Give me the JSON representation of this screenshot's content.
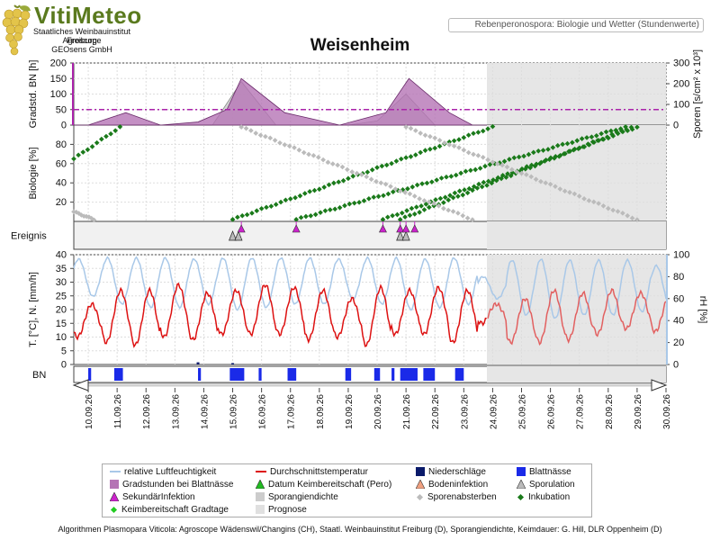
{
  "header": {
    "logo_title": "VitiMeteo",
    "logo_lines": [
      "Staatliches Weinbauinstitut Freiburg",
      "Agroscope",
      "GEOsens GmbH"
    ],
    "subtitle": "Rebenperonospora: Biologie und Wetter (Stundenwerte)",
    "station": "Weisenheim"
  },
  "chart_data": [
    {
      "type": "area",
      "panel": "gradstunden-sporen",
      "ylabel": "Gradstd. BN [h]",
      "ylabel_right": "Sporen [s/cm² x 10³]",
      "ylim": [
        0,
        200
      ],
      "yticks": [
        "0",
        "50",
        "100",
        "150",
        "200"
      ],
      "ylim_right": [
        0,
        300
      ],
      "yticks_right": [
        "0",
        "100",
        "200",
        "300"
      ],
      "threshold_line": 50,
      "x_days": [
        9.5,
        10.0,
        11.3,
        12.5,
        13.8,
        14.8,
        15.3,
        16.8,
        18.7,
        20.3,
        21.1,
        22.5,
        23.3,
        23.8
      ],
      "gradstunden": [
        0,
        0,
        40,
        0,
        10,
        50,
        150,
        40,
        0,
        40,
        150,
        40,
        0,
        0
      ],
      "sporangiendichte_x": [
        14.3,
        15.3,
        16.5,
        19.0,
        20.0,
        21.0,
        22.0,
        23.0
      ],
      "sporangiendichte": [
        0,
        210,
        0,
        0,
        20,
        150,
        0,
        0
      ]
    },
    {
      "type": "scatter",
      "panel": "biologie",
      "ylabel": "Biologie [%]",
      "ylim": [
        0,
        100
      ],
      "yticks": [
        "20",
        "40",
        "60",
        "80"
      ],
      "series": [
        {
          "name": "Inkubation",
          "color": "#1a7a1a",
          "x": [
            9.5,
            11.1
          ],
          "y": [
            65,
            98
          ]
        },
        {
          "name": "Inkubation",
          "color": "#1a7a1a",
          "x": [
            15.0,
            24.0
          ],
          "y": [
            2,
            98
          ]
        },
        {
          "name": "Inkubation",
          "color": "#1a7a1a",
          "x": [
            17.2,
            28.6
          ],
          "y": [
            2,
            98
          ]
        },
        {
          "name": "Inkubation",
          "color": "#1a7a1a",
          "x": [
            20.2,
            29.0
          ],
          "y": [
            2,
            98
          ]
        },
        {
          "name": "Inkubation",
          "color": "#1a7a1a",
          "x": [
            20.8,
            28.8
          ],
          "y": [
            2,
            98
          ]
        },
        {
          "name": "Sporenabsterben",
          "color": "#bbbbbb",
          "x": [
            9.5,
            10.2
          ],
          "y": [
            10,
            2
          ]
        },
        {
          "name": "Sporenabsterben",
          "color": "#bbbbbb",
          "x": [
            15.3,
            23.3
          ],
          "y": [
            98,
            2
          ]
        },
        {
          "name": "Sporenabsterben",
          "color": "#bbbbbb",
          "x": [
            21.0,
            29.0
          ],
          "y": [
            98,
            2
          ]
        }
      ]
    },
    {
      "type": "scatter",
      "panel": "ereignis",
      "ylabel": "Ereignis",
      "sekundaerinfektion": [
        15.3,
        17.2,
        20.2,
        20.8,
        21.0,
        21.3
      ],
      "sporulation": [
        15.0,
        15.2,
        20.8,
        21.0
      ]
    },
    {
      "type": "line",
      "panel": "wetter",
      "ylabel": "T. [°C], N. [mm/h]",
      "ylabel_right": "rH [%]",
      "ylim": [
        0,
        40
      ],
      "yticks": [
        "0",
        "5",
        "10",
        "15",
        "20",
        "25",
        "30",
        "35",
        "40"
      ],
      "ylim_right": [
        0,
        100
      ],
      "yticks_right": [
        "0",
        "20",
        "40",
        "60",
        "80",
        "100"
      ],
      "days": [
        "10.09.26",
        "11.09.26",
        "12.09.26",
        "13.09.26",
        "14.09.26",
        "15.09.26",
        "16.09.26",
        "17.09.26",
        "18.09.26",
        "19.09.26",
        "20.09.26",
        "21.09.26",
        "22.09.26",
        "23.09.26",
        "24.09.26",
        "25.09.26",
        "26.09.26",
        "27.09.26",
        "28.09.26",
        "29.09.26",
        "30.09.26"
      ],
      "temp_daily_max": [
        22,
        27,
        27,
        29,
        26,
        27,
        29,
        28,
        27,
        24,
        28,
        27,
        28,
        27,
        22,
        24,
        27,
        26,
        27,
        26,
        25
      ],
      "temp_daily_min": [
        10,
        8,
        7,
        10,
        9,
        11,
        11,
        11,
        9,
        10,
        7,
        11,
        11,
        8,
        15,
        8,
        8,
        9,
        11,
        13,
        12
      ],
      "rh_daily_max": [
        96,
        97,
        97,
        97,
        96,
        97,
        97,
        97,
        97,
        96,
        97,
        97,
        96,
        97,
        80,
        95,
        96,
        95,
        95,
        95,
        90
      ],
      "rh_daily_min": [
        62,
        55,
        52,
        52,
        55,
        50,
        52,
        55,
        55,
        60,
        55,
        50,
        52,
        55,
        60,
        45,
        42,
        45,
        45,
        48,
        50
      ],
      "niederschlag": {
        "x": [
          13.8,
          15.0
        ],
        "y": [
          0.8,
          0.5
        ]
      }
    },
    {
      "type": "bar",
      "panel": "blattnaesse",
      "ylabel": "BN",
      "intervals": [
        [
          10.0,
          10.1
        ],
        [
          10.9,
          11.2
        ],
        [
          13.8,
          13.9
        ],
        [
          14.9,
          15.4
        ],
        [
          15.9,
          16.0
        ],
        [
          16.9,
          17.2
        ],
        [
          18.9,
          19.1
        ],
        [
          19.9,
          20.1
        ],
        [
          20.5,
          20.6
        ],
        [
          20.8,
          21.4
        ],
        [
          21.6,
          22.0
        ],
        [
          22.7,
          23.0
        ]
      ]
    }
  ],
  "prognose_start_day": 23.8,
  "legend": {
    "items": [
      {
        "label": "relative Luftfeuchtigkeit",
        "icon": "line-light-blue",
        "color": "#a9c8e8"
      },
      {
        "label": "Durchschnittstemperatur",
        "icon": "line-red",
        "color": "#dd1111"
      },
      {
        "label": "Niederschläge",
        "icon": "square-dark-navy",
        "color": "#0a1a6a"
      },
      {
        "label": "Blattnässe",
        "icon": "square-blue",
        "color": "#1a2ae8"
      },
      {
        "label": "Gradstunden bei Blattnässe",
        "icon": "square-purple",
        "color": "#b574b5"
      },
      {
        "label": "Datum Keimbereitschaft (Pero)",
        "icon": "triangle-green",
        "color": "#22bb22"
      },
      {
        "label": "Bodeninfektion",
        "icon": "triangle-salmon",
        "color": "#f0a080"
      },
      {
        "label": "Sporulation",
        "icon": "triangle-grey",
        "color": "#bbbbbb"
      },
      {
        "label": "SekundärInfektion",
        "icon": "triangle-magenta",
        "color": "#cc22cc"
      },
      {
        "label": "Sporangiendichte",
        "icon": "square-light-grey",
        "color": "#cccccc"
      },
      {
        "label": "Sporenabsterben",
        "icon": "diamond-grey",
        "color": "#bbbbbb"
      },
      {
        "label": "Inkubation",
        "icon": "diamond-green",
        "color": "#1a7a1a"
      },
      {
        "label": "Keimbereitschaft Gradtage",
        "icon": "diamond-bright-green",
        "color": "#22cc22"
      },
      {
        "label": "Prognose",
        "icon": "square-pale-grey",
        "color": "#e0e0e0"
      }
    ]
  },
  "footer": "Algorithmen Plasmopara Viticola: Agroscope Wädenswil/Changins (CH), Staatl. Weinbauinstitut Freiburg (D), Sporangiendichte, Keimdauer: G. Hill, DLR Oppenheim (D)"
}
